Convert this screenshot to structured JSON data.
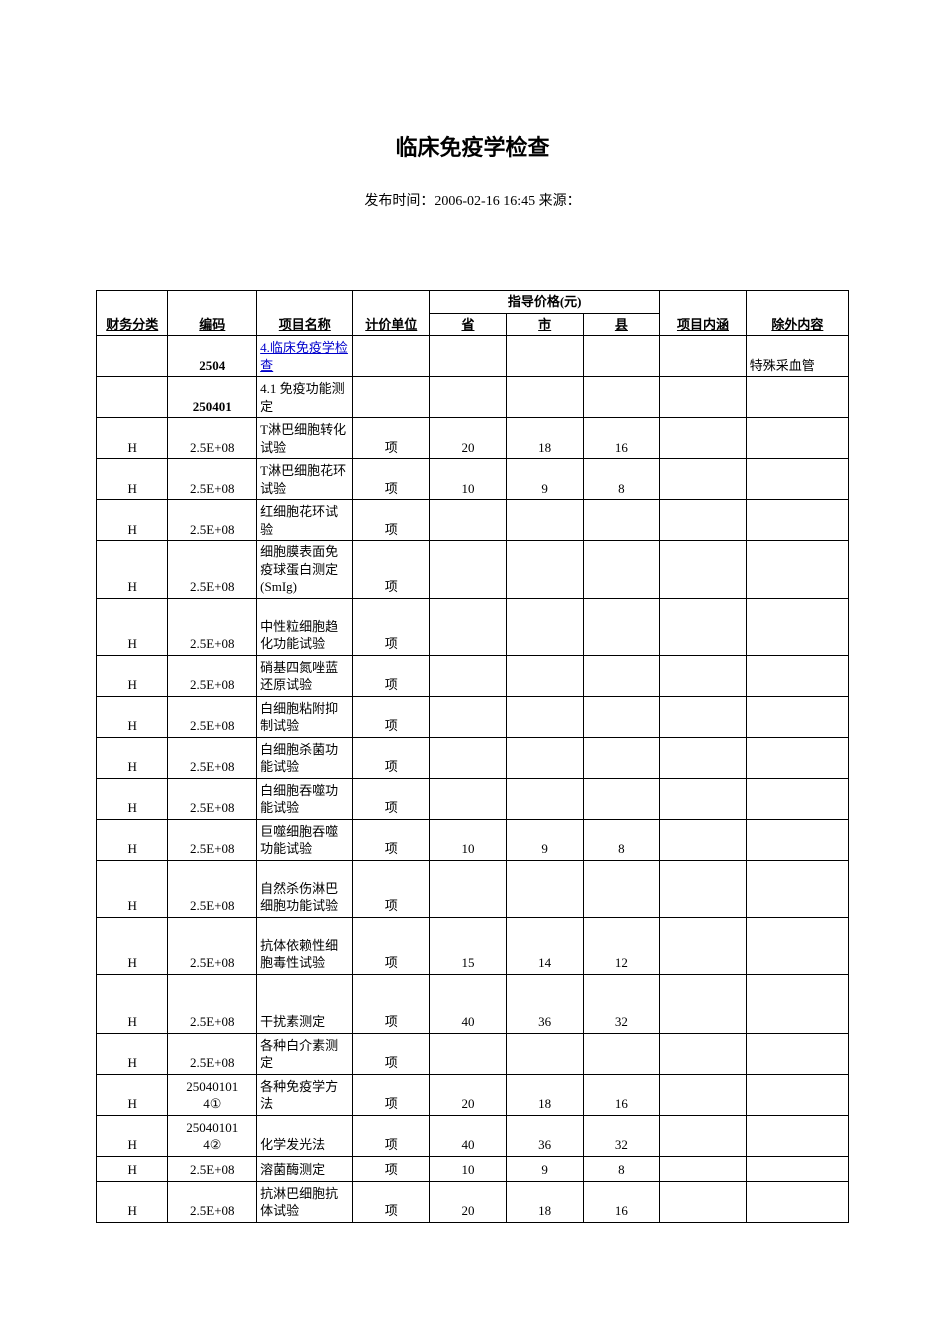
{
  "doc": {
    "title": "临床免疫学检查",
    "subtitle": "发布时间：2006-02-16 16:45 来源：",
    "colors": {
      "text": "#000000",
      "link": "#0000cc",
      "border": "#000000",
      "background": "#ffffff"
    },
    "font": {
      "title_family": "SimHei",
      "body_family": "SimSun",
      "title_size_pt": 16,
      "body_size_pt": 10
    }
  },
  "table": {
    "header": {
      "price_group": "指导价格(元)",
      "cols": [
        "财务分类",
        "编码",
        "项目名称",
        "计价单位",
        "省",
        "市",
        "县",
        "项目内涵",
        "除外内容"
      ]
    },
    "column_widths_pct": [
      9.5,
      11.8,
      12.8,
      10.2,
      10.2,
      10.2,
      10.2,
      11.5,
      13.6
    ],
    "rows": [
      {
        "h": "h2",
        "fin": "",
        "code": "2504",
        "code_bold": true,
        "name": "4.临床免疫学检查",
        "name_link": true,
        "unit": "",
        "p1": "",
        "p2": "",
        "p3": "",
        "nei": "",
        "chu": "特殊采血管"
      },
      {
        "h": "h2",
        "fin": "",
        "code": "250401",
        "code_bold": true,
        "name": "4.1 免疫功能测定",
        "unit": "",
        "p1": "",
        "p2": "",
        "p3": "",
        "nei": "",
        "chu": ""
      },
      {
        "h": "h2",
        "fin": "H",
        "code": "2.5E+08",
        "name": "T淋巴细胞转化试验",
        "unit": "项",
        "p1": "20",
        "p2": "18",
        "p3": "16",
        "nei": "",
        "chu": ""
      },
      {
        "h": "h2",
        "fin": "H",
        "code": "2.5E+08",
        "name": "T淋巴细胞花环试验",
        "unit": "项",
        "p1": "10",
        "p2": "9",
        "p3": "8",
        "nei": "",
        "chu": ""
      },
      {
        "h": "h2",
        "fin": "H",
        "code": "2.5E+08",
        "name": "红细胞花环试验",
        "unit": "项",
        "p1": "",
        "p2": "",
        "p3": "",
        "nei": "",
        "chu": ""
      },
      {
        "h": "h3",
        "fin": "H",
        "code": "2.5E+08",
        "name": "细胞膜表面免疫球蛋白测定(SmIg)",
        "unit": "项",
        "p1": "",
        "p2": "",
        "p3": "",
        "nei": "",
        "chu": ""
      },
      {
        "h": "h3",
        "fin": "H",
        "code": "2.5E+08",
        "name": "中性粒细胞趋化功能试验",
        "unit": "项",
        "p1": "",
        "p2": "",
        "p3": "",
        "nei": "",
        "chu": ""
      },
      {
        "h": "h2",
        "fin": "H",
        "code": "2.5E+08",
        "name": "硝基四氮唑蓝还原试验",
        "unit": "项",
        "p1": "",
        "p2": "",
        "p3": "",
        "nei": "",
        "chu": ""
      },
      {
        "h": "h2",
        "fin": "H",
        "code": "2.5E+08",
        "name": "白细胞粘附抑制试验",
        "unit": "项",
        "p1": "",
        "p2": "",
        "p3": "",
        "nei": "",
        "chu": ""
      },
      {
        "h": "h2",
        "fin": "H",
        "code": "2.5E+08",
        "name": "白细胞杀菌功能试验",
        "unit": "项",
        "p1": "",
        "p2": "",
        "p3": "",
        "nei": "",
        "chu": ""
      },
      {
        "h": "h2",
        "fin": "H",
        "code": "2.5E+08",
        "name": "白细胞吞噬功能试验",
        "unit": "项",
        "p1": "",
        "p2": "",
        "p3": "",
        "nei": "",
        "chu": ""
      },
      {
        "h": "h2",
        "fin": "H",
        "code": "2.5E+08",
        "name": "巨噬细胞吞噬功能试验",
        "unit": "项",
        "p1": "10",
        "p2": "9",
        "p3": "8",
        "nei": "",
        "chu": ""
      },
      {
        "h": "h3",
        "fin": "H",
        "code": "2.5E+08",
        "name": "自然杀伤淋巴细胞功能试验",
        "unit": "项",
        "p1": "",
        "p2": "",
        "p3": "",
        "nei": "",
        "chu": ""
      },
      {
        "h": "h3",
        "fin": "H",
        "code": "2.5E+08",
        "name": "抗体依赖性细胞毒性试验",
        "unit": "项",
        "p1": "15",
        "p2": "14",
        "p3": "12",
        "nei": "",
        "chu": ""
      },
      {
        "h": "h4",
        "fin": "H",
        "code": "2.5E+08",
        "name": "干扰素测定",
        "unit": "项",
        "p1": "40",
        "p2": "36",
        "p3": "32",
        "nei": "",
        "chu": ""
      },
      {
        "h": "h2",
        "fin": "H",
        "code": "2.5E+08",
        "name": "各种白介素测定",
        "unit": "项",
        "p1": "",
        "p2": "",
        "p3": "",
        "nei": "",
        "chu": ""
      },
      {
        "h": "h2",
        "fin": "H",
        "code": "25040101\n4①",
        "name": "各种免疫学方法",
        "unit": "项",
        "p1": "20",
        "p2": "18",
        "p3": "16",
        "nei": "",
        "chu": ""
      },
      {
        "h": "h2",
        "fin": "H",
        "code": "25040101\n4②",
        "name": "化学发光法",
        "unit": "项",
        "p1": "40",
        "p2": "36",
        "p3": "32",
        "nei": "",
        "chu": ""
      },
      {
        "h": "h1",
        "fin": "H",
        "code": "2.5E+08",
        "name": "溶菌酶测定",
        "unit": "项",
        "p1": "10",
        "p2": "9",
        "p3": "8",
        "nei": "",
        "chu": ""
      },
      {
        "h": "h2",
        "fin": "H",
        "code": "2.5E+08",
        "name": "抗淋巴细胞抗体试验",
        "unit": "项",
        "p1": "20",
        "p2": "18",
        "p3": "16",
        "nei": "",
        "chu": ""
      }
    ]
  }
}
